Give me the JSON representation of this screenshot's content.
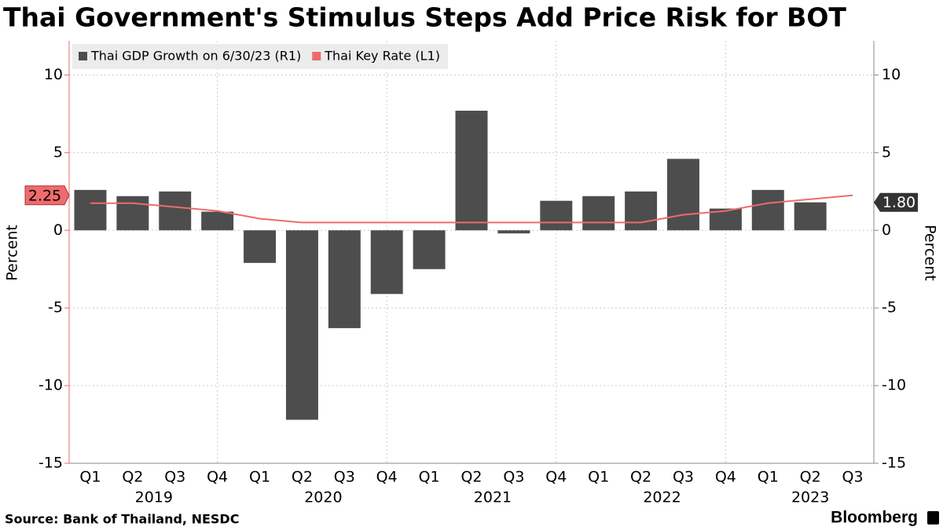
{
  "chart_data": {
    "type": "bar-line",
    "title": "Thai Government's Stimulus Steps Add Price Risk for BOT",
    "categories": [
      "Q1",
      "Q2",
      "Q3",
      "Q4",
      "Q1",
      "Q2",
      "Q3",
      "Q4",
      "Q1",
      "Q2",
      "Q3",
      "Q4",
      "Q1",
      "Q2",
      "Q3",
      "Q4",
      "Q1",
      "Q2",
      "Q3"
    ],
    "year_groups": [
      {
        "label": "2019",
        "count": 4
      },
      {
        "label": "2020",
        "count": 4
      },
      {
        "label": "2021",
        "count": 4
      },
      {
        "label": "2022",
        "count": 4
      },
      {
        "label": "2023",
        "count": 3
      }
    ],
    "series": [
      {
        "name": "Thai GDP Growth on 6/30/23 (R1)",
        "color": "#4d4d4d",
        "type": "bar",
        "axis": "y2",
        "values": [
          2.6,
          2.2,
          2.5,
          1.2,
          -2.1,
          -12.2,
          -6.3,
          -4.1,
          -2.5,
          7.7,
          -0.2,
          1.9,
          2.2,
          2.5,
          4.6,
          1.4,
          2.6,
          1.8,
          null
        ],
        "value_labels": [
          null,
          null,
          null,
          null,
          null,
          null,
          null,
          null,
          null,
          null,
          null,
          null,
          null,
          null,
          null,
          null,
          null,
          "1.80",
          null
        ]
      },
      {
        "name": "Thai Key Rate (L1)",
        "color": "#ee6b6b",
        "type": "line",
        "values": [
          1.75,
          1.75,
          1.5,
          1.25,
          0.75,
          0.5,
          0.5,
          0.5,
          0.5,
          0.5,
          0.5,
          0.5,
          0.5,
          0.5,
          1.0,
          1.25,
          1.75,
          2.0,
          2.25
        ],
        "value_labels": [
          null,
          null,
          null,
          null,
          null,
          null,
          null,
          null,
          null,
          null,
          null,
          null,
          null,
          null,
          null,
          null,
          null,
          null,
          "2.25"
        ]
      }
    ],
    "y_label": "Percent",
    "y2_label": "Percent",
    "ylim": [
      -15,
      12.2
    ],
    "yticks": [
      -15,
      -10,
      -5,
      0,
      5,
      10
    ],
    "y2lim": [
      -15,
      12.2
    ],
    "y2ticks": [
      -15,
      -10,
      -5,
      0,
      5,
      10
    ],
    "grid": true,
    "legend": "top-left",
    "source": "Source: Bank of Thailand, NESDC",
    "brand": "Bloomberg"
  }
}
